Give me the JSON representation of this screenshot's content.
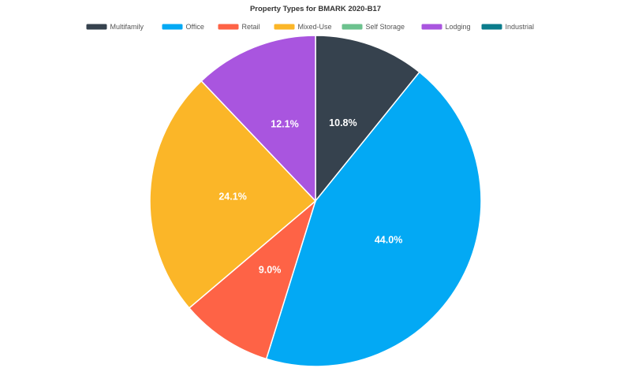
{
  "chart_data": {
    "type": "pie",
    "title": "Property Types for BMARK 2020-B17",
    "legend_position": "top",
    "categories": [
      "Multifamily",
      "Office",
      "Retail",
      "Mixed-Use",
      "Self Storage",
      "Lodging",
      "Industrial"
    ],
    "values": [
      10.8,
      44.0,
      9.0,
      24.1,
      0.0,
      12.1,
      0.0
    ],
    "labels": [
      "10.8%",
      "44.0%",
      "9.0%",
      "24.1%",
      "",
      "12.1%",
      ""
    ],
    "colors": [
      "#36424e",
      "#03a9f4",
      "#fe6346",
      "#fbb628",
      "#6cc28e",
      "#a955df",
      "#0b7c8c"
    ],
    "unit": "%"
  }
}
